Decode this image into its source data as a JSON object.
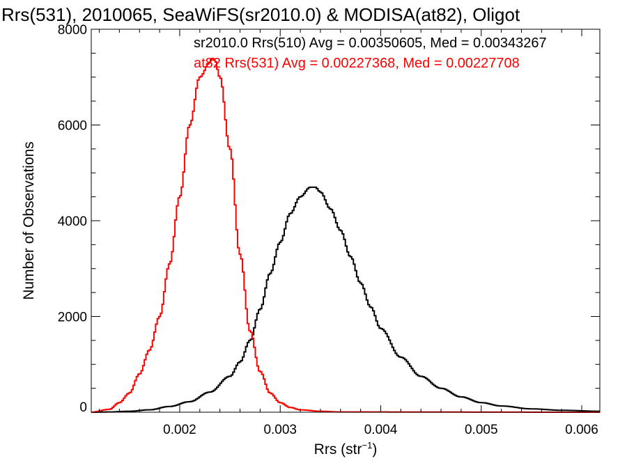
{
  "chart_data": {
    "type": "line",
    "title": "Rrs(531), 2010065, SeaWiFS(sr2010.0) & MODISA(at82), Oligot",
    "xlabel": "Rrs (str",
    "xlabel_sup": "−1",
    "xlabel_close": ")",
    "ylabel": "Number of Observations",
    "xlim": [
      0.00112,
      0.00618
    ],
    "ylim": [
      0,
      8000
    ],
    "x_ticks": [
      {
        "value": 0.002,
        "label": "0.002"
      },
      {
        "value": 0.003,
        "label": "0.003"
      },
      {
        "value": 0.004,
        "label": "0.004"
      },
      {
        "value": 0.005,
        "label": "0.005"
      },
      {
        "value": 0.006,
        "label": "0.006"
      }
    ],
    "y_ticks": [
      {
        "value": 0,
        "label": "0"
      },
      {
        "value": 2000,
        "label": "2000"
      },
      {
        "value": 4000,
        "label": "4000"
      },
      {
        "value": 6000,
        "label": "6000"
      },
      {
        "value": 8000,
        "label": "8000"
      }
    ],
    "grid": false,
    "legend_position": "top-right",
    "step_style": "histogram",
    "series": [
      {
        "name": "sr2010.0 Rrs(510) Avg = 0.00350605, Med = 0.00343267",
        "color": "#000000",
        "x": [
          0.00112,
          0.0013,
          0.0015,
          0.0017,
          0.0019,
          0.0021,
          0.0023,
          0.0025,
          0.0026,
          0.0027,
          0.0028,
          0.0029,
          0.003,
          0.0031,
          0.0032,
          0.0033,
          0.00335,
          0.0034,
          0.0035,
          0.0036,
          0.0037,
          0.0038,
          0.0039,
          0.004,
          0.0042,
          0.0044,
          0.0046,
          0.0048,
          0.005,
          0.0052,
          0.0055,
          0.0058,
          0.00618
        ],
        "y": [
          0,
          5,
          20,
          50,
          120,
          220,
          420,
          750,
          1050,
          1500,
          2150,
          2900,
          3550,
          4150,
          4500,
          4700,
          4700,
          4600,
          4250,
          3800,
          3250,
          2700,
          2200,
          1750,
          1150,
          750,
          500,
          320,
          200,
          130,
          70,
          40,
          20
        ]
      },
      {
        "name": "at82 Rrs(531) Avg = 0.00227368, Med = 0.00227708",
        "color": "#ff0000",
        "x": [
          0.00112,
          0.0013,
          0.0014,
          0.0015,
          0.0016,
          0.0017,
          0.0018,
          0.0019,
          0.002,
          0.0021,
          0.0022,
          0.0023,
          0.00232,
          0.00235,
          0.0024,
          0.0025,
          0.0026,
          0.0027,
          0.0028,
          0.0029,
          0.003,
          0.0031,
          0.0032,
          0.0034,
          0.0036,
          0.00618
        ],
        "y": [
          0,
          60,
          200,
          400,
          800,
          1300,
          2000,
          3100,
          4500,
          6000,
          7000,
          7300,
          7400,
          7350,
          7000,
          5500,
          3300,
          1700,
          850,
          400,
          200,
          100,
          50,
          20,
          5,
          0
        ]
      }
    ]
  }
}
